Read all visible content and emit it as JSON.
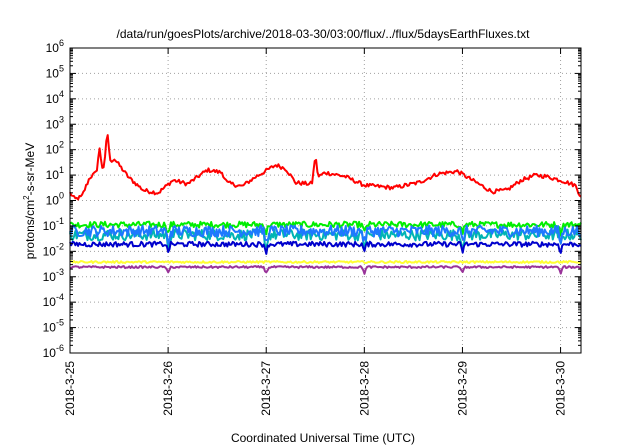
{
  "chart_data": {
    "type": "line",
    "title": "/data/run/goesPlots/archive/2018-03-30/03:00/flux/../flux/5daysEarthFluxes.txt",
    "xlabel": "Coordinated Universal Time (UTC)",
    "ylabel": {
      "prefix": "protons/cm",
      "sup": "2",
      "suffix": "-s-sr-MeV"
    },
    "x_range": [
      "2018-03-25",
      "2018-03-30 05:00"
    ],
    "x_ticks": [
      "2018-3-25",
      "2018-3-26",
      "2018-3-27",
      "2018-3-28",
      "2018-3-29",
      "2018-3-30"
    ],
    "y_scale": "log",
    "ylim": [
      1e-06,
      1000000.0
    ],
    "y_ticks": [
      {
        "base": "10",
        "exp": "6"
      },
      {
        "base": "10",
        "exp": "5"
      },
      {
        "base": "10",
        "exp": "4"
      },
      {
        "base": "10",
        "exp": "3"
      },
      {
        "base": "10",
        "exp": "2"
      },
      {
        "base": "10",
        "exp": "1"
      },
      {
        "base": "10",
        "exp": "0"
      },
      {
        "base": "10",
        "exp": "-1"
      },
      {
        "base": "10",
        "exp": "-2"
      },
      {
        "base": "10",
        "exp": "-3"
      },
      {
        "base": "10",
        "exp": "-4"
      },
      {
        "base": "10",
        "exp": "-5"
      },
      {
        "base": "10",
        "exp": "-6"
      }
    ],
    "grid": true,
    "series": [
      {
        "color": "#ff0000",
        "base_log10": 0.6,
        "noise": 0.08,
        "trend": [
          [
            0,
            -0.3
          ],
          [
            0.05,
            -0.55
          ],
          [
            0.12,
            -0.45
          ],
          [
            0.2,
            0.3
          ],
          [
            0.3,
            0.6
          ],
          [
            0.45,
            1.05
          ],
          [
            0.6,
            0.3
          ],
          [
            0.75,
            -0.2
          ],
          [
            0.9,
            -0.3
          ],
          [
            1.05,
            0.2
          ],
          [
            1.2,
            0.05
          ],
          [
            1.4,
            0.6
          ],
          [
            1.55,
            0.5
          ],
          [
            1.6,
            0.1
          ],
          [
            1.75,
            -0.05
          ],
          [
            1.9,
            0.35
          ],
          [
            2.1,
            0.8
          ],
          [
            2.2,
            0.65
          ],
          [
            2.3,
            0.1
          ],
          [
            2.45,
            0.05
          ],
          [
            2.52,
            0.3
          ],
          [
            2.6,
            0.5
          ],
          [
            2.8,
            0.35
          ],
          [
            3.0,
            0.0
          ],
          [
            3.3,
            -0.1
          ],
          [
            3.55,
            0.1
          ],
          [
            3.75,
            0.45
          ],
          [
            3.95,
            0.55
          ],
          [
            4.1,
            0.2
          ],
          [
            4.3,
            -0.25
          ],
          [
            4.45,
            -0.2
          ],
          [
            4.6,
            0.2
          ],
          [
            4.75,
            0.4
          ],
          [
            4.85,
            0.35
          ],
          [
            5.0,
            0.2
          ],
          [
            5.15,
            0.0
          ],
          [
            5.2,
            -0.4
          ]
        ],
        "spikes": [
          [
            0.3,
            0.85
          ],
          [
            0.38,
            1.3
          ],
          [
            2.5,
            0.95
          ]
        ],
        "dips": []
      },
      {
        "color": "#00ee00",
        "base_log10": -0.95,
        "noise": 0.12,
        "trend": [],
        "spikes": [],
        "dips": [
          [
            1.0,
            0.35
          ],
          [
            2.0,
            0.35
          ],
          [
            3.0,
            0.35
          ],
          [
            4.0,
            0.35
          ],
          [
            5.0,
            0.35
          ]
        ]
      },
      {
        "color": "#00b4b4",
        "base_log10": -1.35,
        "noise": 0.22,
        "trend": [],
        "spikes": [],
        "dips": [
          [
            1.0,
            0.5
          ],
          [
            2.0,
            0.5
          ],
          [
            3.0,
            0.5
          ],
          [
            4.0,
            0.5
          ],
          [
            5.0,
            0.5
          ]
        ]
      },
      {
        "color": "#1e78ff",
        "base_log10": -1.2,
        "noise": 0.22,
        "trend": [],
        "spikes": [],
        "dips": [
          [
            1.0,
            0.5
          ],
          [
            2.0,
            0.5
          ],
          [
            3.0,
            0.5
          ],
          [
            4.0,
            0.5
          ],
          [
            5.0,
            0.5
          ]
        ]
      },
      {
        "color": "#0000cc",
        "base_log10": -1.72,
        "noise": 0.1,
        "trend": [],
        "spikes": [],
        "dips": [
          [
            1.0,
            0.3
          ],
          [
            2.0,
            0.3
          ],
          [
            3.0,
            0.3
          ],
          [
            4.0,
            0.3
          ],
          [
            5.0,
            0.3
          ]
        ]
      },
      {
        "color": "#ffff33",
        "base_log10": -2.42,
        "noise": 0.04,
        "trend": [],
        "spikes": [],
        "dips": []
      },
      {
        "color": "#993399",
        "base_log10": -2.62,
        "noise": 0.04,
        "trend": [],
        "spikes": [],
        "dips": [
          [
            1.0,
            0.25
          ],
          [
            2.0,
            0.25
          ],
          [
            3.0,
            0.25
          ],
          [
            4.0,
            0.25
          ],
          [
            5.0,
            0.25
          ]
        ]
      }
    ]
  }
}
